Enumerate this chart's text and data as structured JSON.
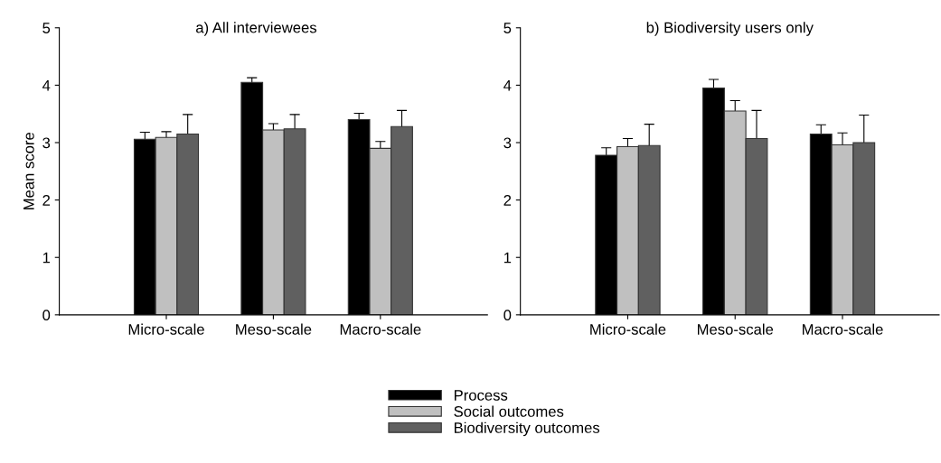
{
  "chart_data": [
    {
      "type": "bar",
      "title": "a) All interviewees",
      "ylabel": "Mean score",
      "categories": [
        "Micro-scale",
        "Meso-scale",
        "Macro-scale"
      ],
      "ylim": [
        0,
        5
      ],
      "yticks": [
        0,
        1,
        2,
        3,
        4,
        5
      ],
      "grid": false,
      "legend": "bottom",
      "series": [
        {
          "name": "Process",
          "color": "#000000",
          "values": [
            3.06,
            4.05,
            3.4
          ],
          "errors": [
            0.12,
            0.08,
            0.11
          ]
        },
        {
          "name": "Social outcomes",
          "color": "#c0c0c0",
          "values": [
            3.09,
            3.22,
            2.9
          ],
          "errors": [
            0.1,
            0.11,
            0.12
          ]
        },
        {
          "name": "Biodiversity outcomes",
          "color": "#606060",
          "values": [
            3.15,
            3.24,
            3.28
          ],
          "errors": [
            0.34,
            0.25,
            0.28
          ]
        }
      ]
    },
    {
      "type": "bar",
      "title": "b) Biodiversity users only",
      "categories": [
        "Micro-scale",
        "Meso-scale",
        "Macro-scale"
      ],
      "ylim": [
        0,
        5
      ],
      "yticks": [
        0,
        1,
        2,
        3,
        4,
        5
      ],
      "grid": false,
      "series": [
        {
          "color": "#000000",
          "values": [
            2.78,
            3.95,
            3.15
          ],
          "errors": [
            0.13,
            0.15,
            0.16
          ]
        },
        {
          "color": "#c0c0c0",
          "values": [
            2.93,
            3.55,
            2.96
          ],
          "errors": [
            0.14,
            0.18,
            0.21
          ]
        },
        {
          "color": "#606060",
          "values": [
            2.95,
            3.07,
            3.0
          ],
          "errors": [
            0.37,
            0.49,
            0.48
          ]
        }
      ]
    }
  ]
}
